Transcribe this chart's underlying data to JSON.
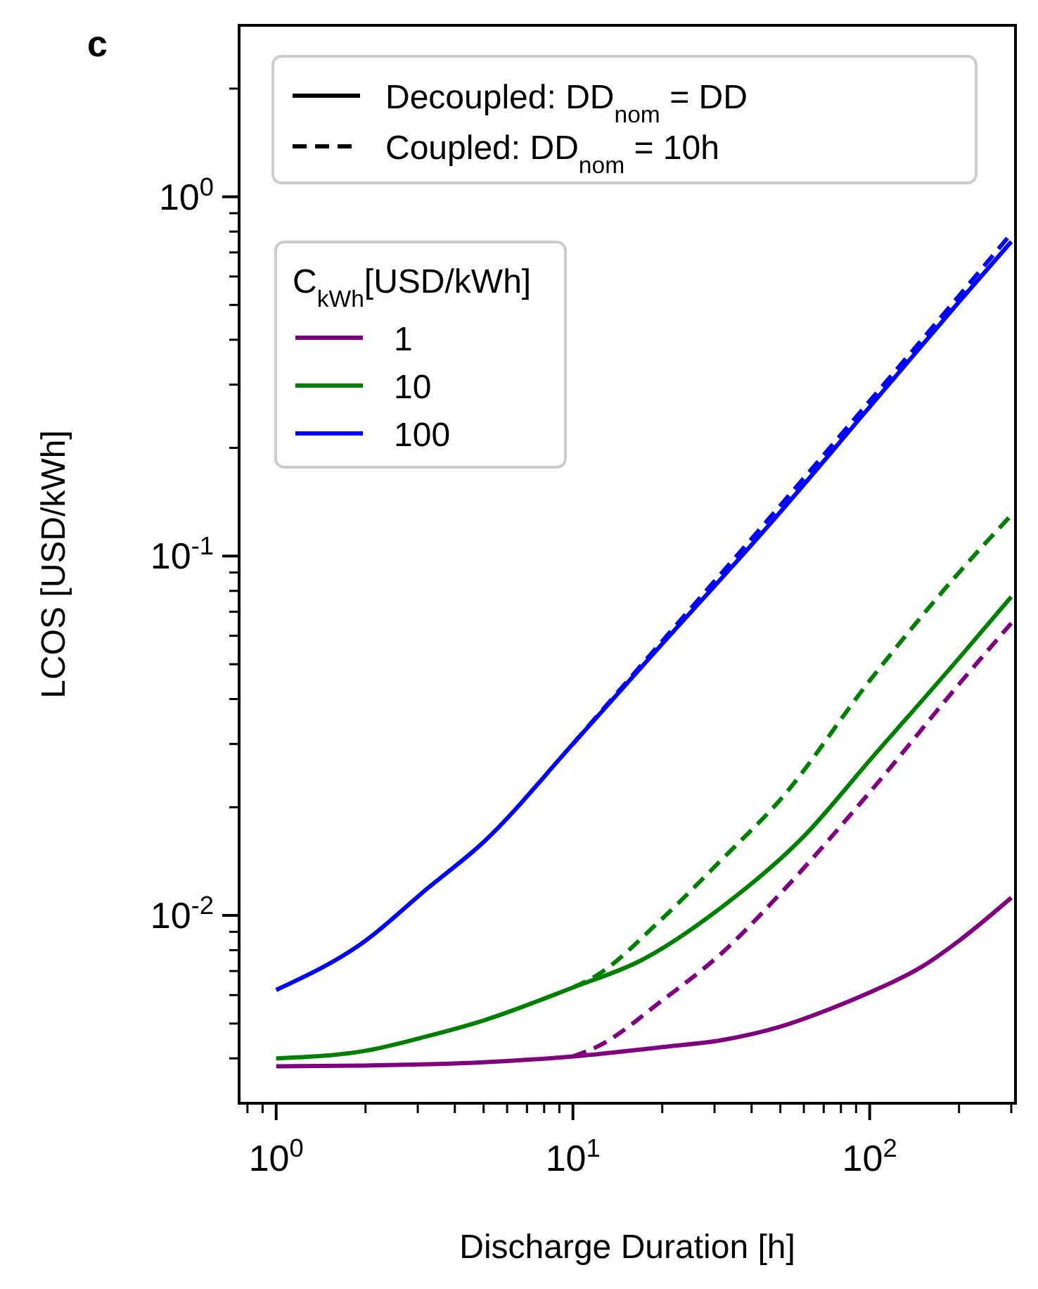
{
  "chart_data": {
    "type": "line",
    "title": "c",
    "xlabel": "Discharge Duration [h]",
    "ylabel": "LCOS [USD/kWh]",
    "legend_title": "C$_{kWh}$[USD/kWh]",
    "annotations": [
      "Decoupled: DD$_{nom}$ = DD",
      "Coupled: DD$_{nom}$ = 10h"
    ],
    "log": "xy",
    "legend": "top left",
    "marker": "none",
    "grid": false,
    "xlim": [
      0.75,
      310
    ],
    "ylim": [
      0.003,
      3
    ],
    "xticks": [
      {
        "value": 0.8,
        "label": null
      },
      {
        "value": 0.9,
        "label": null
      },
      {
        "value": 1,
        "label": "10$^{0}$"
      },
      {
        "value": 2,
        "label": null
      },
      {
        "value": 3,
        "label": null
      },
      {
        "value": 4,
        "label": null
      },
      {
        "value": 5,
        "label": null
      },
      {
        "value": 6,
        "label": null
      },
      {
        "value": 7,
        "label": null
      },
      {
        "value": 8,
        "label": null
      },
      {
        "value": 9,
        "label": null
      },
      {
        "value": 10,
        "label": "10$^{1}$"
      },
      {
        "value": 20,
        "label": null
      },
      {
        "value": 30,
        "label": null
      },
      {
        "value": 40,
        "label": null
      },
      {
        "value": 50,
        "label": null
      },
      {
        "value": 60,
        "label": null
      },
      {
        "value": 70,
        "label": null
      },
      {
        "value": 80,
        "label": null
      },
      {
        "value": 90,
        "label": null
      },
      {
        "value": 100,
        "label": "10$^{2}$"
      },
      {
        "value": 200,
        "label": null
      },
      {
        "value": 300,
        "label": null
      }
    ],
    "yticks": [
      {
        "value": 0.004,
        "label": null
      },
      {
        "value": 0.005,
        "label": null
      },
      {
        "value": 0.006,
        "label": null
      },
      {
        "value": 0.007,
        "label": null
      },
      {
        "value": 0.008,
        "label": null
      },
      {
        "value": 0.009,
        "label": null
      },
      {
        "value": 0.01,
        "label": "10$^{-2}$"
      },
      {
        "value": 0.02,
        "label": null
      },
      {
        "value": 0.03,
        "label": null
      },
      {
        "value": 0.04,
        "label": null
      },
      {
        "value": 0.05,
        "label": null
      },
      {
        "value": 0.06,
        "label": null
      },
      {
        "value": 0.07,
        "label": null
      },
      {
        "value": 0.08,
        "label": null
      },
      {
        "value": 0.09,
        "label": null
      },
      {
        "value": 0.1,
        "label": "10$^{-1}$"
      },
      {
        "value": 0.2,
        "label": null
      },
      {
        "value": 0.3,
        "label": null
      },
      {
        "value": 0.4,
        "label": null
      },
      {
        "value": 0.5,
        "label": null
      },
      {
        "value": 0.6,
        "label": null
      },
      {
        "value": 0.7,
        "label": null
      },
      {
        "value": 0.8,
        "label": null
      },
      {
        "value": 0.9,
        "label": null
      },
      {
        "value": 1,
        "label": "10$^{0}$"
      },
      {
        "value": 2,
        "label": null
      }
    ],
    "series": [
      {
        "name": "1",
        "color": "#800080",
        "line_style": "solid",
        "x": [
          1,
          2,
          5,
          10,
          20,
          32,
          50,
          74,
          100,
          150,
          200,
          300
        ],
        "values": [
          0.0038,
          0.00382,
          0.0039,
          0.00405,
          0.0043,
          0.0045,
          0.0049,
          0.0055,
          0.0061,
          0.0072,
          0.0085,
          0.0112
        ]
      },
      {
        "name": "10",
        "color": "#008000",
        "line_style": "solid",
        "x": [
          1,
          2,
          3.2,
          5,
          10,
          17,
          32,
          60,
          100,
          200,
          300
        ],
        "values": [
          0.004,
          0.0042,
          0.0046,
          0.0051,
          0.0063,
          0.0075,
          0.0106,
          0.0166,
          0.027,
          0.052,
          0.077
        ]
      },
      {
        "name": "100",
        "color": "#0000ff",
        "line_style": "solid",
        "x": [
          1,
          2,
          3.2,
          5,
          10,
          20,
          45,
          100,
          200,
          300
        ],
        "values": [
          0.0062,
          0.0085,
          0.0118,
          0.016,
          0.03,
          0.057,
          0.12,
          0.26,
          0.51,
          0.75
        ]
      },
      {
        "color": "#800080",
        "line_style": "dashed",
        "x": [
          10,
          12,
          20,
          32,
          50,
          100,
          200,
          300
        ],
        "values": [
          0.00405,
          0.0043,
          0.0058,
          0.0079,
          0.0115,
          0.022,
          0.044,
          0.065
        ]
      },
      {
        "color": "#008000",
        "line_style": "dashed",
        "x": [
          10,
          12,
          20,
          32,
          50,
          100,
          200,
          300
        ],
        "values": [
          0.0063,
          0.0068,
          0.0098,
          0.0144,
          0.021,
          0.045,
          0.09,
          0.13
        ]
      },
      {
        "color": "#0000ff",
        "line_style": "dashed",
        "x": [
          10,
          20,
          45,
          100,
          200,
          300
        ],
        "values": [
          0.03,
          0.058,
          0.125,
          0.27,
          0.53,
          0.79
        ]
      }
    ]
  }
}
